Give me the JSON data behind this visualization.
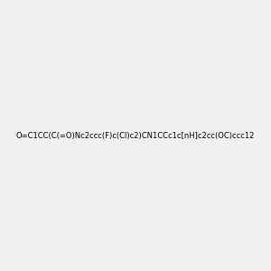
{
  "smiles": "O=C1CC(C(=O)Nc2ccc(F)c(Cl)c2)CN1CCc1c[nH]c2cc(OC)ccc12",
  "title": "",
  "background_color": "#f0f0f0",
  "img_size": [
    300,
    300
  ],
  "atom_colors": {
    "N": "#0000FF",
    "O": "#FF0000",
    "F": "#FF00FF",
    "Cl": "#00CC00",
    "H_label": "#808080"
  }
}
